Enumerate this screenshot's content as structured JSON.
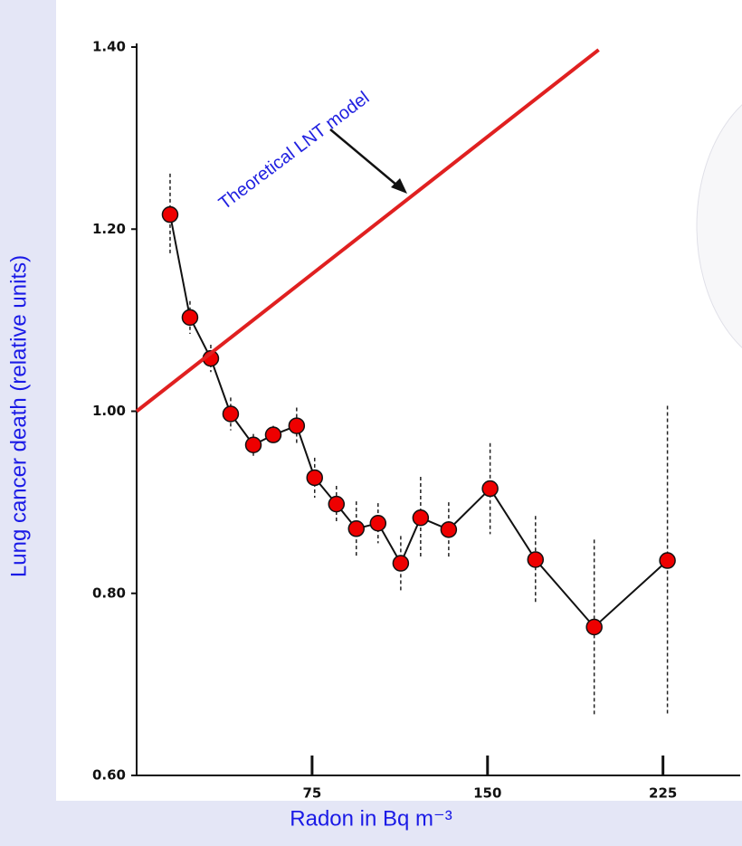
{
  "chart_data": {
    "type": "line",
    "x_label": "Radon in Bq m⁻³",
    "y_label": "Lung cancer death (relative units)",
    "xlim": [
      0,
      258
    ],
    "xticks": [
      75,
      150,
      225
    ],
    "ylim": [
      0.6,
      1.4
    ],
    "yticks": [
      {
        "value": 0.6,
        "label": "0.60"
      },
      {
        "value": 0.8,
        "label": "0.80"
      },
      {
        "value": 1.0,
        "label": "1.00"
      },
      {
        "value": 1.2,
        "label": "1.20"
      },
      {
        "value": 1.4,
        "label": "1.40"
      }
    ],
    "series": [
      {
        "color": "#ee0000",
        "x": [
          14.3,
          22.8,
          31.7,
          40.2,
          49.9,
          58.4,
          68.4,
          76.1,
          85.4,
          93.9,
          103.2,
          112.9,
          121.4,
          133.4,
          151.1,
          170.5,
          195.6,
          226.9
        ],
        "values": [
          1.216,
          1.103,
          1.058,
          0.997,
          0.963,
          0.974,
          0.984,
          0.927,
          0.898,
          0.871,
          0.877,
          0.833,
          0.883,
          0.87,
          0.915,
          0.837,
          0.763,
          0.836
        ],
        "errors": [
          0.045,
          0.018,
          0.015,
          0.018,
          0.012,
          0.01,
          0.02,
          0.022,
          0.02,
          0.03,
          0.022,
          0.03,
          0.045,
          0.03,
          0.05,
          0.048,
          0.096,
          0.17
        ]
      },
      {
        "name": "Theoretical LNT model",
        "color": "#e02020",
        "x": [
          0,
          197.5
        ],
        "values": [
          1.0,
          1.397
        ]
      }
    ]
  }
}
